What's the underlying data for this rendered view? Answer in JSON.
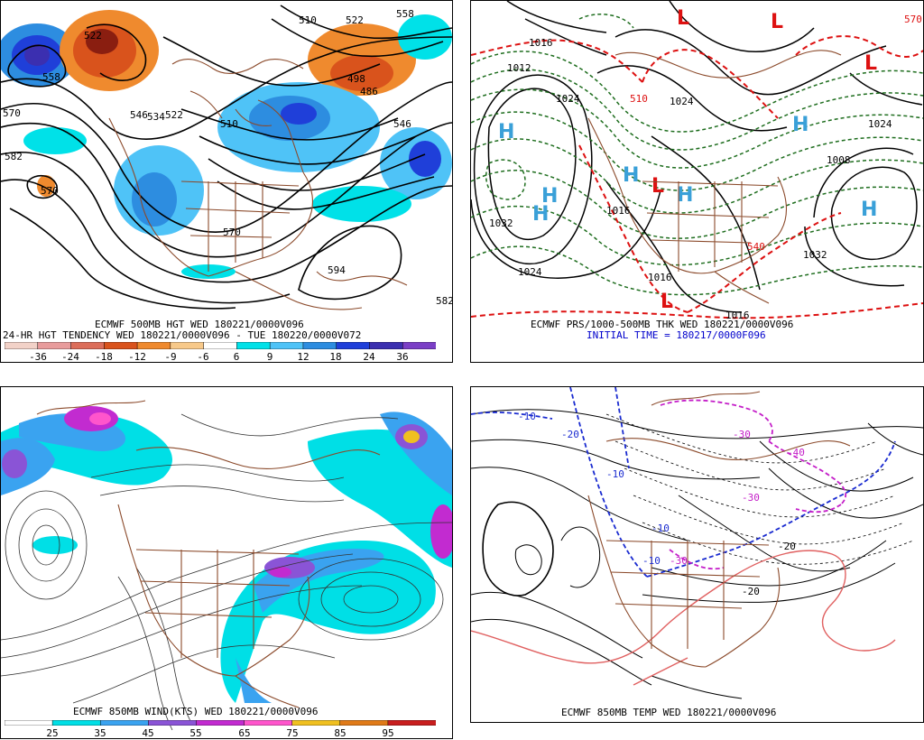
{
  "panels": {
    "p500": {
      "caption1": "ECMWF 500MB HGT WED 180221/0000V096",
      "caption2": "24-HR HGT TENDENCY WED 180221/0000V096 - TUE 180220/0000V072",
      "contour_labels": [
        "558",
        "570",
        "582",
        "570",
        "522",
        "546",
        "534",
        "522",
        "510",
        "510",
        "522",
        "558",
        "498",
        "486",
        "546",
        "570",
        "594",
        "582"
      ],
      "colorbar": {
        "labels": [
          "-36",
          "-24",
          "-18",
          "-12",
          "-9",
          "-6",
          "6",
          "9",
          "12",
          "18",
          "24",
          "36"
        ],
        "colors": [
          "#f2d2c8",
          "#e89c9c",
          "#dc6e5a",
          "#d9531c",
          "#ef8a2e",
          "#f7c98a",
          "#ffffff",
          "#00e1e8",
          "#4fc3f7",
          "#2d8de0",
          "#1f3fd9",
          "#3b2fb0",
          "#7b3fc6"
        ]
      }
    },
    "pprs": {
      "caption1": "ECMWF PRS/1000-500MB THK WED 180221/0000V096",
      "caption2": "INITIAL TIME = 180217/0000F096",
      "isobar_labels": [
        "1016",
        "1012",
        "1024",
        "1032",
        "1024",
        "1024",
        "1024",
        "1032",
        "1016",
        "1016",
        "1008",
        "1016"
      ],
      "thickness_labels": [
        "510",
        "540",
        "570"
      ],
      "high_symbol": "H",
      "low_symbol": "L"
    },
    "pwind": {
      "caption1": "ECMWF 850MB WIND(KTS) WED 180221/0000V096",
      "colorbar": {
        "labels": [
          "25",
          "35",
          "45",
          "55",
          "65",
          "75",
          "85",
          "95"
        ],
        "colors": [
          "#ffffff",
          "#00dfe6",
          "#3aa3f0",
          "#8a54d6",
          "#c22bd0",
          "#ff55cc",
          "#f0c020",
          "#e07a18",
          "#c81e1e"
        ]
      }
    },
    "ptemp": {
      "caption1": "ECMWF 850MB TEMP WED 180221/0000V096",
      "contour_labels": [
        "-10",
        "-10",
        "-20",
        "-10",
        "-30",
        "-40",
        "-30",
        "-30",
        "-20",
        "-20",
        "-10"
      ]
    }
  }
}
